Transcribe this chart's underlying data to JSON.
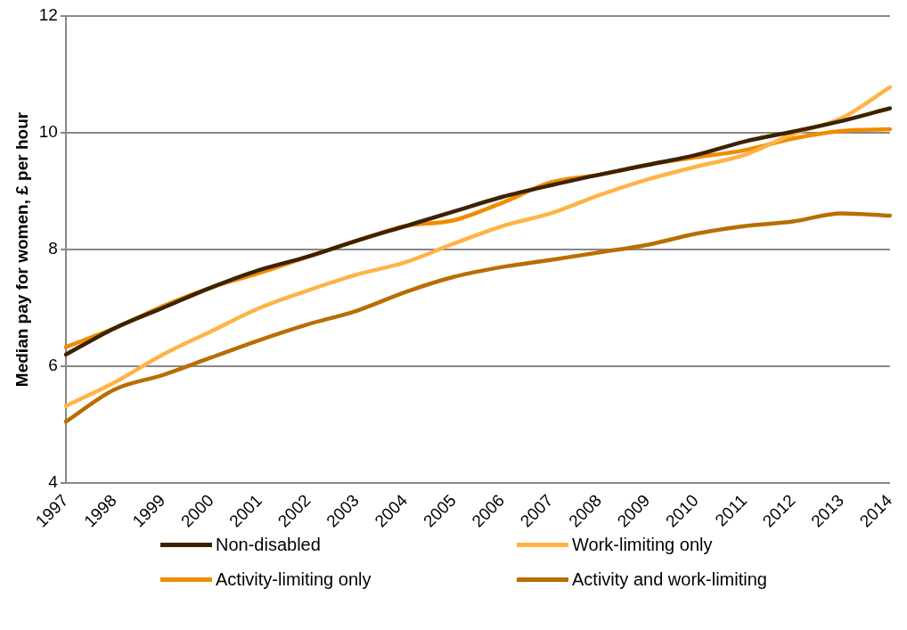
{
  "chart_data": {
    "type": "line",
    "ylabel": "Median pay for women, £ per hour",
    "categories": [
      "1997",
      "1998",
      "1999",
      "2000",
      "2001",
      "2002",
      "2003",
      "2004",
      "2005",
      "2006",
      "2007",
      "2008",
      "2009",
      "2010",
      "2011",
      "2012",
      "2013",
      "2014"
    ],
    "series": [
      {
        "name": "Non-disabled",
        "color": "#3d2200",
        "values": [
          6.2,
          6.65,
          7.0,
          7.35,
          7.65,
          7.88,
          8.15,
          8.4,
          8.65,
          8.9,
          9.1,
          9.28,
          9.45,
          9.62,
          9.85,
          10.02,
          10.2,
          10.42
        ]
      },
      {
        "name": "Work-limiting only",
        "color": "#ffb347",
        "values": [
          5.32,
          5.72,
          6.2,
          6.6,
          7.0,
          7.3,
          7.57,
          7.78,
          8.1,
          8.4,
          8.62,
          8.93,
          9.2,
          9.42,
          9.62,
          9.98,
          10.25,
          10.78
        ]
      },
      {
        "name": "Activity-limiting only",
        "color": "#f08c00",
        "values": [
          6.33,
          6.65,
          7.03,
          7.35,
          7.6,
          7.88,
          8.15,
          8.4,
          8.5,
          8.8,
          9.15,
          9.28,
          9.45,
          9.58,
          9.7,
          9.9,
          10.03,
          10.06
        ]
      },
      {
        "name": "Activity and work-limiting",
        "color": "#b86e00",
        "values": [
          5.05,
          5.6,
          5.85,
          6.15,
          6.45,
          6.72,
          6.95,
          7.27,
          7.53,
          7.7,
          7.82,
          7.95,
          8.08,
          8.27,
          8.4,
          8.48,
          8.62,
          8.58
        ]
      }
    ],
    "ylim": [
      4,
      12
    ],
    "yticks": [
      4,
      6,
      8,
      10,
      12
    ],
    "grid": "y",
    "legend": "bottom",
    "marker": "none",
    "line_style": "solid"
  }
}
